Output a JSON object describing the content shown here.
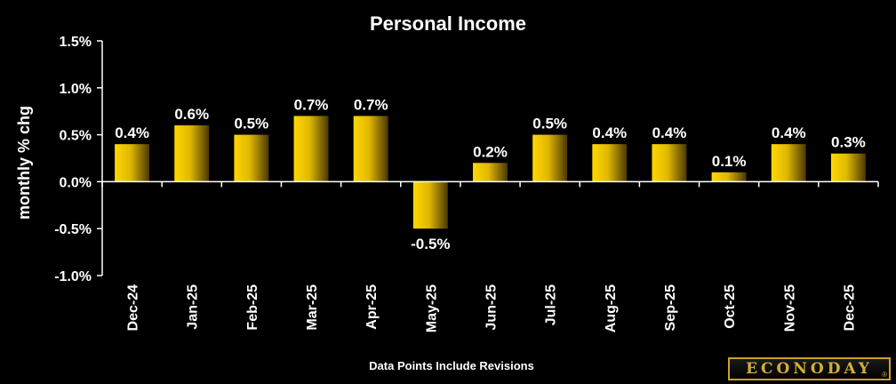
{
  "chart_data": {
    "type": "bar",
    "title": "Personal Income",
    "ylabel": "monthly % chg",
    "footnote": "Data Points Include Revisions",
    "categories": [
      "Dec-24",
      "Jan-25",
      "Feb-25",
      "Mar-25",
      "Apr-25",
      "May-25",
      "Jun-25",
      "Jul-25",
      "Aug-25",
      "Sep-25",
      "Oct-25",
      "Nov-25",
      "Dec-25"
    ],
    "values": [
      0.4,
      0.6,
      0.5,
      0.7,
      0.7,
      -0.5,
      0.2,
      0.5,
      0.4,
      0.4,
      0.1,
      0.4,
      0.3
    ],
    "data_labels": [
      "0.4%",
      "0.6%",
      "0.5%",
      "0.7%",
      "0.7%",
      "-0.5%",
      "0.2%",
      "0.5%",
      "0.4%",
      "0.4%",
      "0.1%",
      "0.4%",
      "0.3%"
    ],
    "ylim": [
      -1.0,
      1.5
    ],
    "yticks": [
      1.5,
      1.0,
      0.5,
      0.0,
      -0.5,
      -1.0
    ],
    "ytick_labels": [
      "1.5%",
      "1.0%",
      "0.5%",
      "0.0%",
      "-0.5%",
      "-1.0%"
    ],
    "grid": false,
    "legend": "none",
    "colors": {
      "background": "#000000",
      "bar_light": "#ffd700",
      "bar_dark": "#3a2c00",
      "text": "#ffffff",
      "axis": "#ffffff"
    }
  },
  "branding": {
    "logo_text": "ECONODAY",
    "logo_mark": "®"
  }
}
